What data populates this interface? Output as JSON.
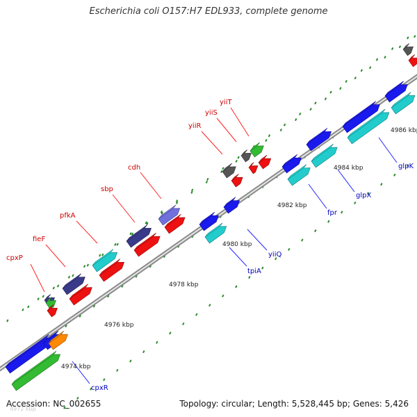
{
  "title": "Escherichia coli O157:H7 EDL933, complete genome",
  "footer": {
    "accession": "Accession: NC_002655",
    "summary": "Topology: circular; Length: 5,528,445 bp; Genes: 5,426",
    "faint": "4972 kbp"
  },
  "colors": {
    "backbone": "#a0a0a0",
    "forward_label": "#cc0000",
    "reverse_label": "#0000bb",
    "tick": "#2a8a2a",
    "red": "#ee1111",
    "blue": "#1a1aee",
    "cyan": "#22cccc",
    "navy": "#3a3a8a",
    "lavender": "#7070dd",
    "green": "#33bb33",
    "gray": "#555555",
    "orange": "#ff8800"
  },
  "kbp_labels": [
    "4974 kbp",
    "4976 kbp",
    "4978 kbp",
    "4980 kbp",
    "4982 kbp",
    "4984 kbp",
    "4986 kbp"
  ],
  "forward_genes": [
    "cpxP",
    "fieF",
    "pfkA",
    "sbp",
    "cdh",
    "yiiR",
    "yiiS",
    "yiiT"
  ],
  "reverse_genes": [
    "cpxR",
    "tpiA",
    "yiiQ",
    "fpr",
    "glpX",
    "glpK"
  ]
}
